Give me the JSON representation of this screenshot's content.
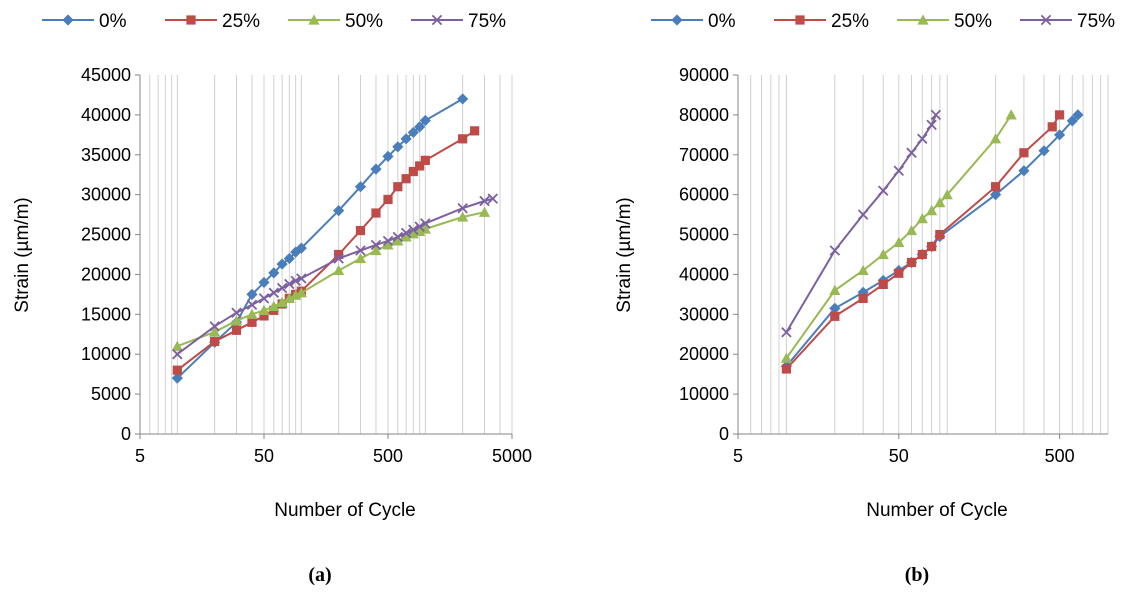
{
  "chart_data": [
    {
      "type": "line",
      "caption": "(a)",
      "xlabel": "Number of Cycle",
      "ylabel": "Strain (µm/m)",
      "xscale": "log",
      "xlim": [
        5,
        5000
      ],
      "ylim": [
        0,
        45000
      ],
      "yticks": [
        0,
        5000,
        10000,
        15000,
        20000,
        25000,
        30000,
        35000,
        40000,
        45000
      ],
      "xticks": [
        5,
        50,
        500,
        5000
      ],
      "grid": "vertical minor gridlines",
      "legend": "top",
      "series": [
        {
          "name": "0%",
          "color": "#4A7EBB",
          "marker": "diamond",
          "x": [
            10,
            20,
            30,
            40,
            50,
            60,
            70,
            80,
            90,
            100,
            200,
            300,
            400,
            500,
            600,
            700,
            800,
            900,
            1000,
            2000
          ],
          "y": [
            7000,
            11500,
            14000,
            17500,
            19000,
            20200,
            21300,
            22000,
            22800,
            23300,
            28000,
            31000,
            33200,
            34800,
            36000,
            37000,
            37800,
            38500,
            39300,
            42000
          ]
        },
        {
          "name": "25%",
          "color": "#BE4B48",
          "marker": "square",
          "x": [
            10,
            20,
            30,
            40,
            50,
            60,
            70,
            80,
            90,
            100,
            200,
            300,
            400,
            500,
            600,
            700,
            800,
            900,
            1000,
            2000,
            2500
          ],
          "y": [
            8000,
            11600,
            13000,
            14000,
            14800,
            15500,
            16300,
            17000,
            17500,
            17900,
            22500,
            25500,
            27700,
            29400,
            31000,
            32000,
            32900,
            33600,
            34300,
            37000,
            38000
          ]
        },
        {
          "name": "50%",
          "color": "#98B954",
          "marker": "triangle",
          "x": [
            10,
            20,
            30,
            40,
            50,
            60,
            70,
            80,
            90,
            100,
            200,
            300,
            400,
            500,
            600,
            700,
            800,
            900,
            1000,
            2000,
            3000
          ],
          "y": [
            11000,
            12800,
            14200,
            15000,
            15500,
            16000,
            16500,
            17000,
            17400,
            17700,
            20500,
            22000,
            23000,
            23700,
            24200,
            24700,
            25100,
            25400,
            25700,
            27200,
            27800
          ]
        },
        {
          "name": "75%",
          "color": "#7D60A0",
          "marker": "x",
          "x": [
            10,
            20,
            30,
            40,
            50,
            60,
            70,
            80,
            90,
            100,
            200,
            300,
            400,
            500,
            600,
            700,
            800,
            900,
            1000,
            2000,
            3000,
            3500
          ],
          "y": [
            10000,
            13500,
            15200,
            16200,
            17000,
            17700,
            18300,
            18800,
            19200,
            19500,
            22000,
            23000,
            23700,
            24200,
            24700,
            25200,
            25600,
            26000,
            26400,
            28300,
            29200,
            29500
          ]
        }
      ]
    },
    {
      "type": "line",
      "caption": "(b)",
      "xlabel": "Number of Cycle",
      "ylabel": "Strain (µm/m)",
      "xscale": "log",
      "xlim": [
        5,
        1000
      ],
      "ylim": [
        0,
        90000
      ],
      "yticks": [
        0,
        10000,
        20000,
        30000,
        40000,
        50000,
        60000,
        70000,
        80000,
        90000
      ],
      "xticks": [
        5,
        50,
        500
      ],
      "grid": "vertical minor gridlines",
      "legend": "top",
      "series": [
        {
          "name": "0%",
          "color": "#4A7EBB",
          "marker": "diamond",
          "x": [
            10,
            20,
            30,
            40,
            50,
            60,
            70,
            80,
            90,
            200,
            300,
            400,
            500,
            600,
            650
          ],
          "y": [
            17000,
            31500,
            35500,
            38500,
            41000,
            43000,
            45000,
            47000,
            49500,
            60000,
            66000,
            71000,
            75000,
            78500,
            80000
          ]
        },
        {
          "name": "25%",
          "color": "#BE4B48",
          "marker": "square",
          "x": [
            10,
            20,
            30,
            40,
            50,
            60,
            70,
            80,
            90,
            200,
            300,
            450,
            500
          ],
          "y": [
            16300,
            29500,
            34000,
            37500,
            40300,
            43000,
            45000,
            47000,
            50000,
            62000,
            70500,
            77000,
            80000
          ]
        },
        {
          "name": "50%",
          "color": "#98B954",
          "marker": "triangle",
          "x": [
            10,
            20,
            30,
            40,
            50,
            60,
            70,
            80,
            90,
            100,
            200,
            250
          ],
          "y": [
            19000,
            36000,
            41000,
            45000,
            48000,
            51000,
            54000,
            56000,
            58000,
            60000,
            74000,
            80000
          ]
        },
        {
          "name": "75%",
          "color": "#7D60A0",
          "marker": "x",
          "x": [
            10,
            20,
            30,
            40,
            50,
            60,
            70,
            80,
            85
          ],
          "y": [
            25500,
            46000,
            55000,
            61000,
            66000,
            70500,
            74000,
            77500,
            80000
          ]
        }
      ]
    }
  ]
}
